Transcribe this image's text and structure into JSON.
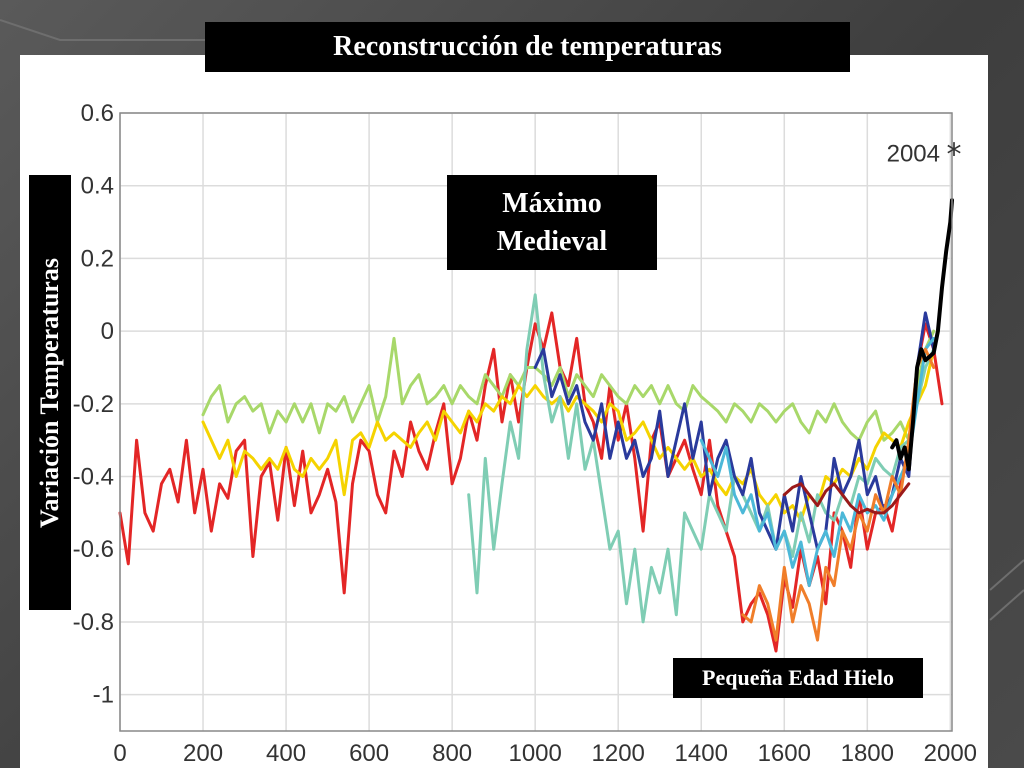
{
  "slide": {
    "title": "Reconstrucción de temperaturas",
    "colors": {
      "background": "#4a4a4a",
      "panel": "#ffffff",
      "label_bg": "#000000",
      "label_fg": "#ffffff"
    }
  },
  "annotations": {
    "max_line1": "Máximo",
    "max_line2": "Medieval",
    "ice_age": "Pequeña Edad Hielo",
    "year_marker": "2004"
  },
  "chart_data": {
    "type": "line",
    "title": "Reconstrucción de temperaturas",
    "xlabel": "",
    "ylabel": "Variación Temperaturas",
    "xlim": [
      0,
      2004
    ],
    "ylim": [
      -1.1,
      0.6
    ],
    "xticks": [
      0,
      200,
      400,
      600,
      800,
      1000,
      1200,
      1400,
      1600,
      1800,
      2000
    ],
    "yticks": [
      0.6,
      0.4,
      0.2,
      0,
      -0.2,
      -0.4,
      -0.6,
      -0.8,
      -1
    ],
    "grid": true,
    "legend": "none",
    "marker": {
      "x": 2004,
      "y": 0.45,
      "label": "2004",
      "symbol": "*"
    },
    "series": [
      {
        "color": "#e32626",
        "x": [
          0,
          20,
          40,
          60,
          80,
          100,
          120,
          140,
          160,
          180,
          200,
          220,
          240,
          260,
          280,
          300,
          320,
          340,
          360,
          380,
          400,
          420,
          440,
          460,
          480,
          500,
          520,
          540,
          560,
          580,
          600,
          620,
          640,
          660,
          680,
          700,
          720,
          740,
          760,
          780,
          800,
          820,
          840,
          860,
          880,
          900,
          920,
          940,
          960,
          980,
          1000,
          1020,
          1040,
          1060,
          1080,
          1100,
          1120,
          1140,
          1160,
          1180,
          1200,
          1220,
          1240,
          1260,
          1280,
          1300,
          1320,
          1340,
          1360,
          1380,
          1400,
          1420,
          1440,
          1460,
          1480,
          1500,
          1520,
          1540,
          1560,
          1580,
          1600,
          1620,
          1640,
          1660,
          1680,
          1700,
          1720,
          1740,
          1760,
          1780,
          1800,
          1820,
          1840,
          1860,
          1880,
          1900,
          1920,
          1940,
          1960,
          1980
        ],
        "y": [
          -0.5,
          -0.64,
          -0.3,
          -0.5,
          -0.55,
          -0.42,
          -0.38,
          -0.47,
          -0.3,
          -0.5,
          -0.38,
          -0.55,
          -0.42,
          -0.46,
          -0.33,
          -0.3,
          -0.62,
          -0.4,
          -0.36,
          -0.52,
          -0.32,
          -0.48,
          -0.33,
          -0.5,
          -0.45,
          -0.38,
          -0.47,
          -0.72,
          -0.42,
          -0.3,
          -0.33,
          -0.45,
          -0.5,
          -0.33,
          -0.4,
          -0.25,
          -0.33,
          -0.38,
          -0.28,
          -0.2,
          -0.42,
          -0.35,
          -0.22,
          -0.3,
          -0.15,
          -0.05,
          -0.25,
          -0.12,
          -0.25,
          -0.1,
          0.02,
          -0.05,
          0.05,
          -0.1,
          -0.15,
          -0.02,
          -0.2,
          -0.25,
          -0.35,
          -0.15,
          -0.3,
          -0.2,
          -0.35,
          -0.55,
          -0.3,
          -0.25,
          -0.4,
          -0.35,
          -0.3,
          -0.38,
          -0.45,
          -0.3,
          -0.48,
          -0.55,
          -0.62,
          -0.8,
          -0.75,
          -0.72,
          -0.78,
          -0.88,
          -0.68,
          -0.76,
          -0.6,
          -0.7,
          -0.62,
          -0.75,
          -0.5,
          -0.55,
          -0.65,
          -0.45,
          -0.6,
          -0.5,
          -0.48,
          -0.55,
          -0.42,
          -0.32,
          -0.1,
          0.02,
          -0.05,
          -0.2
        ]
      },
      {
        "color": "#a8d86a",
        "x": [
          200,
          220,
          240,
          260,
          280,
          300,
          320,
          340,
          360,
          380,
          400,
          420,
          440,
          460,
          480,
          500,
          520,
          540,
          560,
          580,
          600,
          620,
          640,
          660,
          680,
          700,
          720,
          740,
          760,
          780,
          800,
          820,
          840,
          860,
          880,
          900,
          920,
          940,
          960,
          980,
          1000,
          1020,
          1040,
          1060,
          1080,
          1100,
          1120,
          1140,
          1160,
          1180,
          1200,
          1220,
          1240,
          1260,
          1280,
          1300,
          1320,
          1340,
          1360,
          1380,
          1400,
          1420,
          1440,
          1460,
          1480,
          1500,
          1520,
          1540,
          1560,
          1580,
          1600,
          1620,
          1640,
          1660,
          1680,
          1700,
          1720,
          1740,
          1760,
          1780,
          1800,
          1820,
          1840,
          1860,
          1880,
          1900,
          1920,
          1940,
          1960
        ],
        "y": [
          -0.23,
          -0.18,
          -0.15,
          -0.25,
          -0.2,
          -0.18,
          -0.22,
          -0.2,
          -0.28,
          -0.22,
          -0.25,
          -0.2,
          -0.25,
          -0.2,
          -0.28,
          -0.2,
          -0.22,
          -0.18,
          -0.25,
          -0.2,
          -0.15,
          -0.25,
          -0.18,
          -0.02,
          -0.2,
          -0.15,
          -0.12,
          -0.2,
          -0.18,
          -0.15,
          -0.2,
          -0.15,
          -0.18,
          -0.2,
          -0.12,
          -0.15,
          -0.18,
          -0.12,
          -0.15,
          -0.1,
          -0.1,
          -0.12,
          -0.15,
          -0.1,
          -0.18,
          -0.12,
          -0.15,
          -0.18,
          -0.12,
          -0.15,
          -0.18,
          -0.2,
          -0.15,
          -0.18,
          -0.15,
          -0.2,
          -0.15,
          -0.2,
          -0.22,
          -0.15,
          -0.18,
          -0.2,
          -0.22,
          -0.25,
          -0.2,
          -0.22,
          -0.25,
          -0.2,
          -0.22,
          -0.25,
          -0.22,
          -0.2,
          -0.25,
          -0.28,
          -0.22,
          -0.25,
          -0.2,
          -0.25,
          -0.28,
          -0.3,
          -0.25,
          -0.22,
          -0.3,
          -0.28,
          -0.25,
          -0.3,
          -0.15,
          -0.05,
          0.0
        ]
      },
      {
        "color": "#f5d300",
        "x": [
          200,
          220,
          240,
          260,
          280,
          300,
          320,
          340,
          360,
          380,
          400,
          420,
          440,
          460,
          480,
          500,
          520,
          540,
          560,
          580,
          600,
          620,
          640,
          660,
          680,
          700,
          720,
          740,
          760,
          780,
          800,
          820,
          840,
          860,
          880,
          900,
          920,
          940,
          960,
          980,
          1000,
          1020,
          1040,
          1060,
          1080,
          1100,
          1120,
          1140,
          1160,
          1180,
          1200,
          1220,
          1240,
          1260,
          1280,
          1300,
          1320,
          1340,
          1360,
          1380,
          1400,
          1420,
          1440,
          1460,
          1480,
          1500,
          1520,
          1540,
          1560,
          1580,
          1600,
          1620,
          1640,
          1660,
          1680,
          1700,
          1720,
          1740,
          1760,
          1780,
          1800,
          1820,
          1840,
          1860,
          1880,
          1900,
          1920,
          1940,
          1960
        ],
        "y": [
          -0.25,
          -0.3,
          -0.35,
          -0.3,
          -0.4,
          -0.33,
          -0.35,
          -0.38,
          -0.35,
          -0.38,
          -0.32,
          -0.38,
          -0.4,
          -0.35,
          -0.38,
          -0.35,
          -0.3,
          -0.45,
          -0.3,
          -0.28,
          -0.32,
          -0.25,
          -0.3,
          -0.28,
          -0.3,
          -0.32,
          -0.28,
          -0.25,
          -0.3,
          -0.22,
          -0.25,
          -0.28,
          -0.22,
          -0.25,
          -0.2,
          -0.22,
          -0.18,
          -0.2,
          -0.15,
          -0.18,
          -0.15,
          -0.18,
          -0.2,
          -0.18,
          -0.22,
          -0.18,
          -0.2,
          -0.22,
          -0.25,
          -0.2,
          -0.22,
          -0.3,
          -0.28,
          -0.25,
          -0.3,
          -0.35,
          -0.32,
          -0.35,
          -0.38,
          -0.35,
          -0.4,
          -0.38,
          -0.42,
          -0.45,
          -0.4,
          -0.42,
          -0.38,
          -0.45,
          -0.48,
          -0.45,
          -0.5,
          -0.48,
          -0.52,
          -0.45,
          -0.48,
          -0.4,
          -0.42,
          -0.38,
          -0.4,
          -0.35,
          -0.38,
          -0.32,
          -0.28,
          -0.3,
          -0.32,
          -0.25,
          -0.2,
          -0.15,
          -0.05
        ]
      },
      {
        "color": "#7fcdb4",
        "x": [
          840,
          860,
          880,
          900,
          920,
          940,
          960,
          980,
          1000,
          1020,
          1040,
          1060,
          1080,
          1100,
          1120,
          1140,
          1160,
          1180,
          1200,
          1220,
          1240,
          1260,
          1280,
          1300,
          1320,
          1340,
          1360,
          1380,
          1400,
          1420,
          1440,
          1460,
          1480,
          1500,
          1520,
          1540,
          1560,
          1580,
          1600,
          1620,
          1640,
          1660,
          1680,
          1700,
          1720,
          1740,
          1760,
          1780,
          1800,
          1820,
          1840,
          1860,
          1880,
          1900,
          1920,
          1940,
          1960
        ],
        "y": [
          -0.45,
          -0.72,
          -0.35,
          -0.6,
          -0.42,
          -0.25,
          -0.35,
          -0.05,
          0.1,
          -0.12,
          -0.25,
          -0.18,
          -0.35,
          -0.2,
          -0.38,
          -0.3,
          -0.45,
          -0.6,
          -0.55,
          -0.75,
          -0.6,
          -0.8,
          -0.65,
          -0.72,
          -0.6,
          -0.78,
          -0.5,
          -0.55,
          -0.6,
          -0.45,
          -0.5,
          -0.55,
          -0.4,
          -0.45,
          -0.5,
          -0.55,
          -0.48,
          -0.6,
          -0.55,
          -0.62,
          -0.5,
          -0.58,
          -0.45,
          -0.5,
          -0.52,
          -0.45,
          -0.48,
          -0.4,
          -0.42,
          -0.35,
          -0.38,
          -0.4,
          -0.32,
          -0.3,
          -0.2,
          -0.1,
          -0.05
        ]
      },
      {
        "color": "#2a3a9c",
        "x": [
          1000,
          1020,
          1040,
          1060,
          1080,
          1100,
          1120,
          1140,
          1160,
          1180,
          1200,
          1220,
          1240,
          1260,
          1280,
          1300,
          1320,
          1340,
          1360,
          1380,
          1400,
          1420,
          1440,
          1460,
          1480,
          1500,
          1520,
          1540,
          1560,
          1580,
          1600,
          1620,
          1640,
          1660,
          1680,
          1700,
          1720,
          1740,
          1760,
          1780,
          1800,
          1820,
          1840,
          1860,
          1880,
          1900,
          1920,
          1940,
          1960
        ],
        "y": [
          -0.1,
          -0.05,
          -0.18,
          -0.12,
          -0.2,
          -0.15,
          -0.25,
          -0.3,
          -0.2,
          -0.35,
          -0.25,
          -0.35,
          -0.3,
          -0.4,
          -0.35,
          -0.22,
          -0.4,
          -0.3,
          -0.2,
          -0.35,
          -0.25,
          -0.45,
          -0.35,
          -0.3,
          -0.4,
          -0.45,
          -0.35,
          -0.5,
          -0.55,
          -0.6,
          -0.45,
          -0.55,
          -0.4,
          -0.5,
          -0.6,
          -0.55,
          -0.35,
          -0.45,
          -0.4,
          -0.3,
          -0.45,
          -0.4,
          -0.5,
          -0.45,
          -0.35,
          -0.4,
          -0.1,
          0.05,
          -0.05
        ]
      },
      {
        "color": "#4cb8d8",
        "x": [
          1400,
          1420,
          1440,
          1460,
          1480,
          1500,
          1520,
          1540,
          1560,
          1580,
          1600,
          1620,
          1640,
          1660,
          1680,
          1700,
          1720,
          1740,
          1760,
          1780,
          1800,
          1820,
          1840,
          1860,
          1880,
          1900,
          1920,
          1940,
          1960
        ],
        "y": [
          -0.3,
          -0.35,
          -0.4,
          -0.32,
          -0.45,
          -0.5,
          -0.45,
          -0.55,
          -0.5,
          -0.6,
          -0.55,
          -0.65,
          -0.58,
          -0.7,
          -0.6,
          -0.55,
          -0.62,
          -0.5,
          -0.55,
          -0.45,
          -0.5,
          -0.48,
          -0.52,
          -0.45,
          -0.4,
          -0.35,
          -0.2,
          -0.05,
          -0.02
        ]
      },
      {
        "color": "#f07e2a",
        "x": [
          1500,
          1520,
          1540,
          1560,
          1580,
          1600,
          1620,
          1640,
          1660,
          1680,
          1700,
          1720,
          1740,
          1760,
          1780,
          1800,
          1820,
          1840,
          1860,
          1880,
          1900,
          1920,
          1940,
          1960
        ],
        "y": [
          -0.78,
          -0.8,
          -0.7,
          -0.75,
          -0.85,
          -0.65,
          -0.8,
          -0.7,
          -0.75,
          -0.85,
          -0.65,
          -0.7,
          -0.55,
          -0.6,
          -0.5,
          -0.55,
          -0.45,
          -0.5,
          -0.4,
          -0.45,
          -0.3,
          -0.1,
          -0.05,
          -0.1
        ]
      },
      {
        "color": "#9c1a1a",
        "x": [
          1600,
          1620,
          1640,
          1660,
          1680,
          1700,
          1720,
          1740,
          1760,
          1780,
          1800,
          1820,
          1840,
          1860,
          1880,
          1900
        ],
        "y": [
          -0.45,
          -0.43,
          -0.42,
          -0.45,
          -0.48,
          -0.44,
          -0.42,
          -0.45,
          -0.48,
          -0.5,
          -0.49,
          -0.5,
          -0.5,
          -0.48,
          -0.45,
          -0.42
        ]
      },
      {
        "color": "#000000",
        "x": [
          1860,
          1870,
          1880,
          1890,
          1900,
          1910,
          1920,
          1930,
          1940,
          1950,
          1960,
          1970,
          1980,
          1990,
          2000,
          2004
        ],
        "y": [
          -0.32,
          -0.3,
          -0.35,
          -0.32,
          -0.38,
          -0.25,
          -0.1,
          -0.05,
          -0.08,
          -0.07,
          -0.06,
          0.0,
          0.12,
          0.22,
          0.3,
          0.36
        ]
      }
    ]
  }
}
